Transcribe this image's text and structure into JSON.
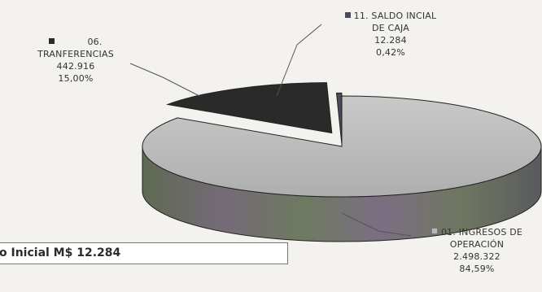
{
  "chart_data": {
    "type": "pie",
    "title": "",
    "slices": [
      {
        "label_lines": [
          "01. INGRESOS DE",
          "OPERACIÓN"
        ],
        "value": 2498322,
        "value_text": "2.498.322",
        "percent": 84.59,
        "percent_text": "84,59%",
        "color": "#b8b8b8"
      },
      {
        "label_lines": [
          "06.",
          "TRANFERENCIAS"
        ],
        "value": 442916,
        "value_text": "442.916",
        "percent": 15.0,
        "percent_text": "15,00%",
        "color": "#2a2a2a"
      },
      {
        "label_lines": [
          "11. SALDO INCIAL",
          "DE CAJA"
        ],
        "value": 12284,
        "value_text": "12.284",
        "percent": 0.42,
        "percent_text": "0,42%",
        "color": "#4a4a5a"
      }
    ],
    "legend": "inline-labels",
    "grid": false
  },
  "footer_box": {
    "text": "o Inicial M$ 12.284"
  }
}
